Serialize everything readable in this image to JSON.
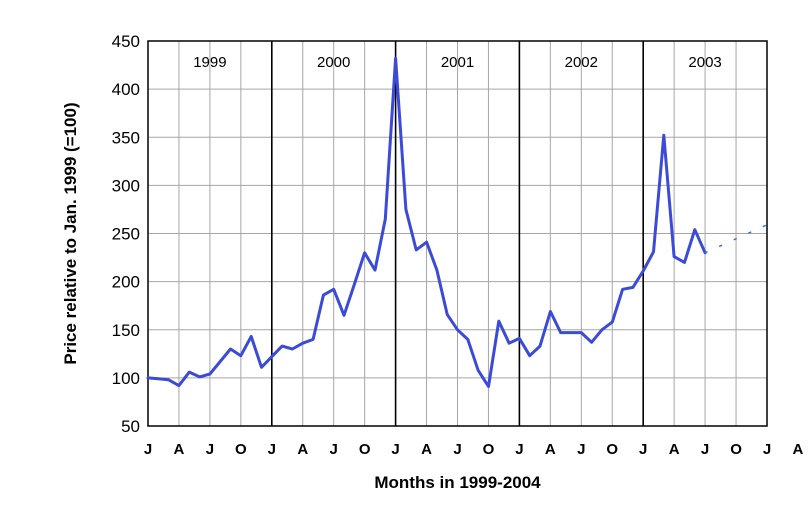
{
  "chart_data": {
    "type": "line",
    "xlabel": "Months in 1999-2004",
    "ylabel": "Price relative to Jan. 1999  (=100)",
    "ylim": [
      50,
      450
    ],
    "yticks": [
      "50",
      "100",
      "150",
      "200",
      "250",
      "300",
      "350",
      "400",
      "450"
    ],
    "xlim": [
      0,
      60
    ],
    "xticks": [
      "J",
      "A",
      "J",
      "O",
      "J",
      "A",
      "J",
      "O",
      "J",
      "A",
      "J",
      "O",
      "J",
      "A",
      "J",
      "O",
      "J",
      "A",
      "J",
      "O",
      "J",
      "A",
      "J",
      "O",
      "J"
    ],
    "years": [
      "1999",
      "2000",
      "2001",
      "2002",
      "2003"
    ],
    "grid": true,
    "colors": {
      "line": "#3b4bd8",
      "grid": "#a6a6a6",
      "divider": "#000000",
      "projection": "#3b6fd8"
    },
    "series": [
      {
        "values": [
          [
            0,
            100
          ],
          [
            1,
            99
          ],
          [
            2,
            98
          ],
          [
            3,
            92
          ],
          [
            4,
            106
          ],
          [
            5,
            101
          ],
          [
            6,
            104
          ],
          [
            7,
            117
          ],
          [
            8,
            130
          ],
          [
            9,
            123
          ],
          [
            10,
            143
          ],
          [
            11,
            111
          ],
          [
            12,
            122
          ],
          [
            13,
            133
          ],
          [
            14,
            130
          ],
          [
            15,
            136
          ],
          [
            16,
            140
          ],
          [
            17,
            186
          ],
          [
            18,
            192
          ],
          [
            19,
            165
          ],
          [
            20,
            197
          ],
          [
            21,
            230
          ],
          [
            22,
            212
          ],
          [
            23,
            265
          ],
          [
            24,
            432
          ],
          [
            25,
            275
          ],
          [
            26,
            233
          ],
          [
            27,
            241
          ],
          [
            28,
            212
          ],
          [
            29,
            166
          ],
          [
            30,
            150
          ],
          [
            31,
            140
          ],
          [
            32,
            108
          ],
          [
            33,
            91
          ],
          [
            34,
            159
          ],
          [
            35,
            136
          ],
          [
            36,
            141
          ],
          [
            37,
            123
          ],
          [
            38,
            133
          ],
          [
            39,
            169
          ],
          [
            40,
            147
          ],
          [
            41,
            147
          ],
          [
            42,
            147
          ],
          [
            43,
            137
          ],
          [
            44,
            150
          ],
          [
            45,
            158
          ],
          [
            46,
            192
          ],
          [
            47,
            194
          ],
          [
            48,
            211
          ],
          [
            49,
            231
          ],
          [
            50,
            352
          ],
          [
            51,
            226
          ],
          [
            52,
            220
          ],
          [
            53,
            254
          ],
          [
            54,
            230
          ]
        ]
      },
      {
        "style": "dotted",
        "values": [
          [
            54,
            230
          ],
          [
            60,
            259
          ]
        ]
      }
    ]
  }
}
